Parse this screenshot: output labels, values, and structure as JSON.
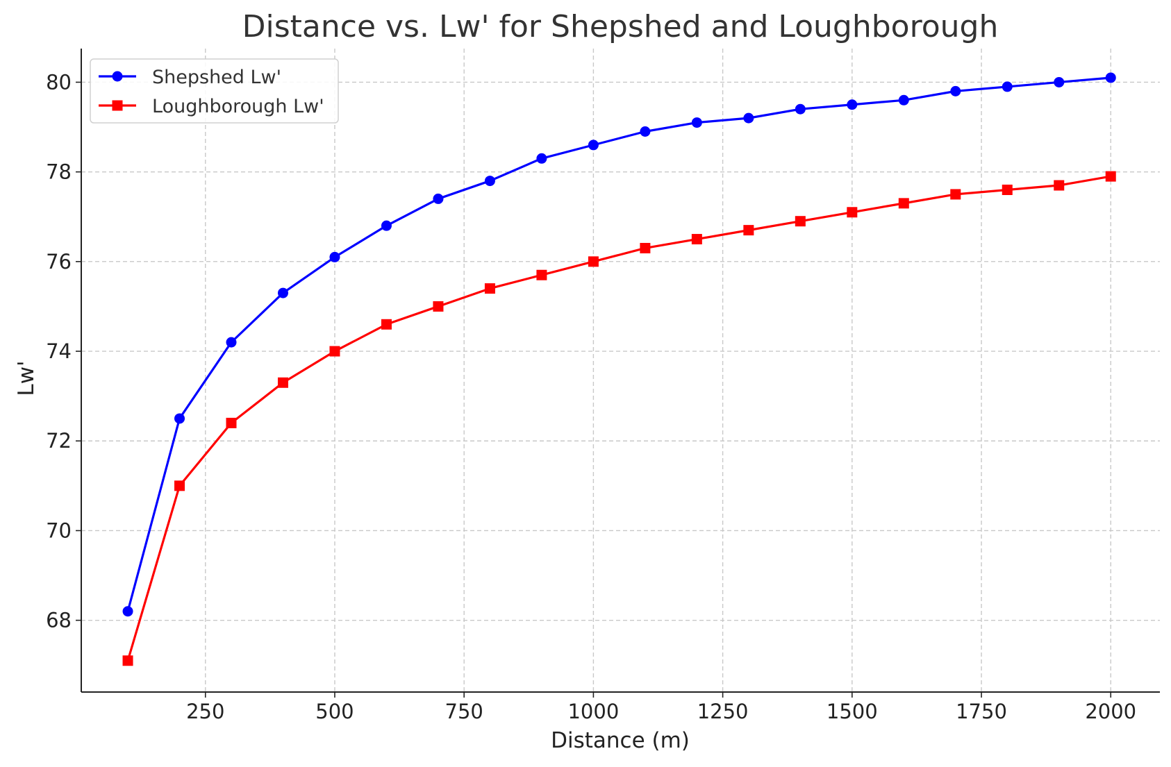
{
  "chart_data": {
    "type": "line",
    "title": "Distance vs. Lw' for Shepshed and Loughborough",
    "xlabel": "Distance (m)",
    "ylabel": "Lw'",
    "xlim": [
      10,
      2095
    ],
    "ylim": [
      66.4,
      80.75
    ],
    "x_ticks": [
      250,
      500,
      750,
      1000,
      1250,
      1500,
      1750,
      2000
    ],
    "y_ticks": [
      68,
      70,
      72,
      74,
      76,
      78,
      80
    ],
    "grid": true,
    "legend_position": "top-left",
    "x": [
      100,
      200,
      300,
      400,
      500,
      600,
      700,
      800,
      900,
      1000,
      1100,
      1200,
      1300,
      1400,
      1500,
      1600,
      1700,
      1800,
      1900,
      2000
    ],
    "series": [
      {
        "name": "Shepshed Lw'",
        "color": "#0000ff",
        "marker": "circle",
        "values": [
          68.2,
          72.5,
          74.2,
          75.3,
          76.1,
          76.8,
          77.4,
          77.8,
          78.3,
          78.6,
          78.9,
          79.1,
          79.2,
          79.4,
          79.5,
          79.6,
          79.8,
          79.9,
          80.0,
          80.1
        ]
      },
      {
        "name": "Loughborough Lw'",
        "color": "#ff0000",
        "marker": "square",
        "values": [
          67.1,
          71.0,
          72.4,
          73.3,
          74.0,
          74.6,
          75.0,
          75.4,
          75.7,
          76.0,
          76.3,
          76.5,
          76.7,
          76.9,
          77.1,
          77.3,
          77.5,
          77.6,
          77.7,
          77.9
        ]
      }
    ]
  }
}
